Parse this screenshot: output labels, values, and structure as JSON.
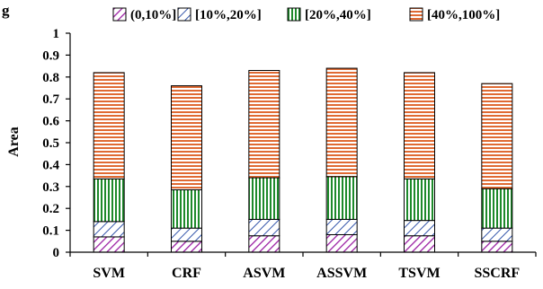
{
  "chart_data": {
    "type": "bar",
    "stacked": true,
    "title": "",
    "top_left_fragment": "g",
    "xlabel": "",
    "ylabel": "Area",
    "ylim": [
      0,
      1
    ],
    "yticks": [
      "0",
      "0.1",
      "0.2",
      "0.3",
      "0.4",
      "0.5",
      "0.6",
      "0.7",
      "0.8",
      "0.9",
      "1"
    ],
    "categories": [
      "SVM",
      "CRF",
      "ASVM",
      "ASSVM",
      "TSVM",
      "SSCRF"
    ],
    "legend_position": "top-right",
    "grid": false,
    "series": [
      {
        "name": "(0,10%]",
        "color": "#9b1fa3",
        "pattern": "diagonal",
        "values": [
          0.07,
          0.05,
          0.075,
          0.08,
          0.075,
          0.05
        ]
      },
      {
        "name": "[10%,20%]",
        "color": "#3355aa",
        "pattern": "diagonal",
        "values": [
          0.07,
          0.06,
          0.075,
          0.07,
          0.07,
          0.06
        ]
      },
      {
        "name": "[20%,40%]",
        "color": "#1e8a2b",
        "pattern": "vertical",
        "values": [
          0.195,
          0.175,
          0.19,
          0.195,
          0.19,
          0.18
        ]
      },
      {
        "name": "[40%,100%]",
        "color": "#e06a33",
        "pattern": "horizontal",
        "values": [
          0.485,
          0.475,
          0.49,
          0.495,
          0.485,
          0.48
        ]
      }
    ]
  }
}
